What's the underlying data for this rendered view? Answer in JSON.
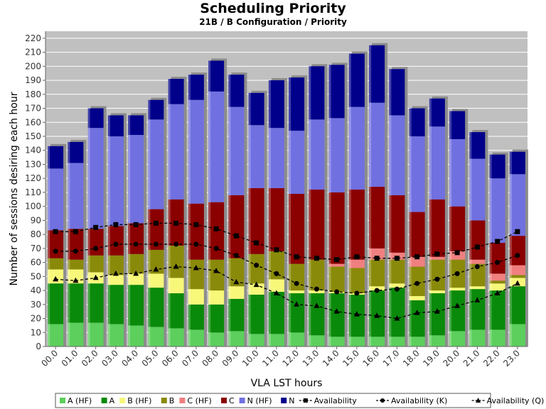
{
  "chart_data": {
    "type": "bar",
    "stacked": true,
    "title": "Scheduling Priority",
    "subtitle": "21B / B Configuration /  Priority",
    "xlabel": "VLA LST hours",
    "ylabel": "Number of sessions desiring each hour",
    "ylim": [
      0,
      225
    ],
    "yticks": [
      0,
      10,
      20,
      30,
      40,
      50,
      60,
      70,
      80,
      90,
      100,
      110,
      120,
      130,
      140,
      150,
      160,
      170,
      180,
      190,
      200,
      210,
      220
    ],
    "grid": true,
    "legend_position": "bottom",
    "categories": [
      "00.0",
      "01.0",
      "02.0",
      "03.0",
      "04.0",
      "05.0",
      "06.0",
      "07.0",
      "08.0",
      "09.0",
      "10.0",
      "11.0",
      "12.0",
      "13.0",
      "14.0",
      "15.0",
      "16.0",
      "17.0",
      "18.0",
      "19.0",
      "20.0",
      "21.0",
      "22.0",
      "23.0"
    ],
    "series": [
      {
        "name": "A (HF)",
        "color": "#5ccf5c",
        "values": [
          16,
          17,
          17,
          16,
          15,
          14,
          13,
          12,
          10,
          11,
          9,
          9,
          10,
          8,
          7,
          7,
          7,
          7,
          7,
          8,
          11,
          12,
          12,
          16
        ]
      },
      {
        "name": "A",
        "color": "#0a8a0a",
        "values": [
          29,
          28,
          28,
          28,
          29,
          28,
          25,
          18,
          20,
          23,
          28,
          30,
          28,
          30,
          31,
          30,
          33,
          35,
          26,
          30,
          29,
          29,
          28,
          27
        ]
      },
      {
        "name": "B (HF)",
        "color": "#f7f77a",
        "values": [
          10,
          10,
          8,
          7,
          8,
          10,
          11,
          11,
          10,
          9,
          8,
          9,
          2,
          2,
          1,
          1,
          3,
          3,
          3,
          2,
          2,
          2,
          5,
          6
        ]
      },
      {
        "name": "B",
        "color": "#8a8a0a",
        "values": [
          8,
          7,
          12,
          14,
          14,
          17,
          23,
          21,
          22,
          20,
          21,
          20,
          19,
          22,
          18,
          18,
          19,
          17,
          21,
          22,
          20,
          16,
          2,
          2
        ]
      },
      {
        "name": "C (HF)",
        "color": "#f08080",
        "values": [
          0,
          0,
          0,
          0,
          0,
          0,
          0,
          0,
          0,
          0,
          0,
          0,
          0,
          0,
          2,
          6,
          8,
          5,
          7,
          2,
          6,
          3,
          5,
          7
        ]
      },
      {
        "name": "C",
        "color": "#8b0000",
        "values": [
          20,
          22,
          19,
          21,
          22,
          29,
          33,
          40,
          41,
          45,
          47,
          45,
          50,
          50,
          51,
          50,
          44,
          41,
          32,
          41,
          32,
          28,
          22,
          21
        ]
      },
      {
        "name": "N (HF)",
        "color": "#7070e0",
        "values": [
          44,
          47,
          72,
          64,
          63,
          64,
          68,
          74,
          79,
          63,
          45,
          43,
          45,
          50,
          53,
          59,
          60,
          57,
          54,
          52,
          48,
          44,
          46,
          44
        ]
      },
      {
        "name": "N",
        "color": "#00008b",
        "values": [
          16,
          15,
          14,
          15,
          14,
          14,
          18,
          18,
          22,
          23,
          23,
          34,
          38,
          38,
          38,
          38,
          41,
          33,
          20,
          20,
          20,
          19,
          17,
          16
        ]
      }
    ],
    "lines": [
      {
        "name": "Availability",
        "marker": "square",
        "values": [
          82,
          82,
          85,
          87,
          87,
          88,
          88,
          87,
          84,
          79,
          74,
          69,
          64,
          63,
          62,
          64,
          63,
          63,
          64,
          66,
          67,
          71,
          75,
          82
        ]
      },
      {
        "name": "Availability (K)",
        "marker": "circle",
        "values": [
          68,
          68,
          70,
          73,
          73,
          73,
          73,
          73,
          70,
          65,
          58,
          52,
          45,
          41,
          39,
          38,
          40,
          41,
          45,
          48,
          52,
          57,
          60,
          65
        ]
      },
      {
        "name": "Availability (Q)",
        "marker": "triangle",
        "values": [
          48,
          47,
          49,
          52,
          52,
          55,
          57,
          56,
          54,
          46,
          44,
          38,
          30,
          29,
          25,
          23,
          22,
          20,
          24,
          25,
          29,
          33,
          38,
          45
        ]
      }
    ]
  }
}
